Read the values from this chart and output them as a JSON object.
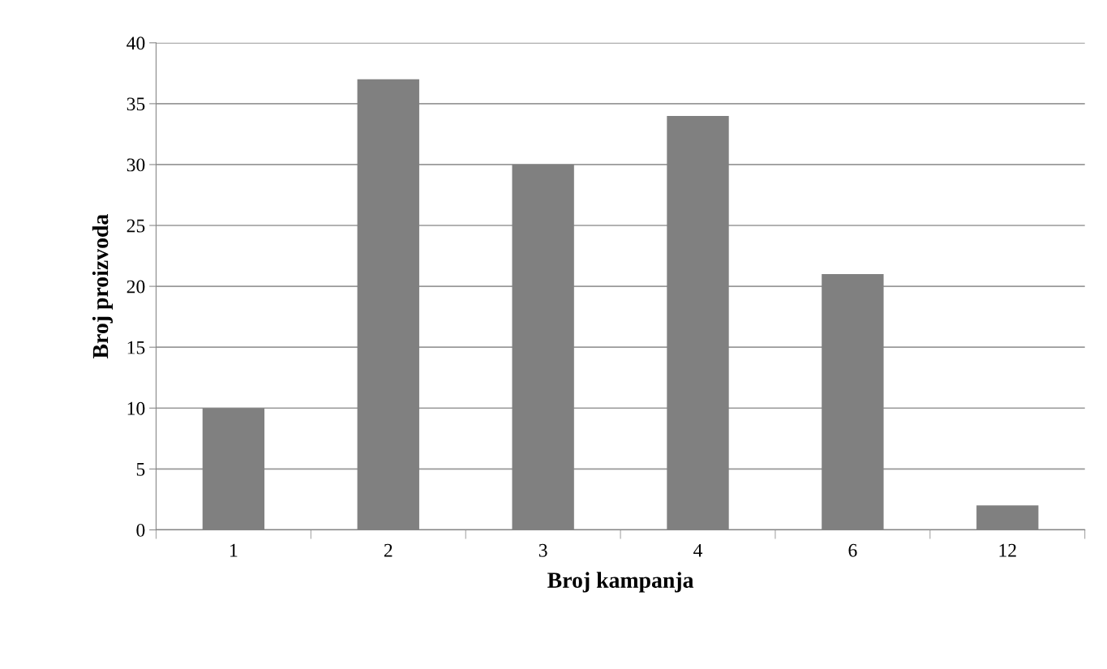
{
  "chart_data": {
    "type": "bar",
    "xlabel": "Broj kampanja",
    "ylabel": "Broj proizvoda",
    "categories": [
      "1",
      "2",
      "3",
      "4",
      "6",
      "12"
    ],
    "values": [
      10,
      37,
      30,
      34,
      21,
      2
    ],
    "color": "#808080",
    "ylim": [
      0,
      40
    ],
    "yticks": [
      0,
      5,
      10,
      15,
      20,
      25,
      30,
      35,
      40
    ],
    "grid": "y"
  }
}
